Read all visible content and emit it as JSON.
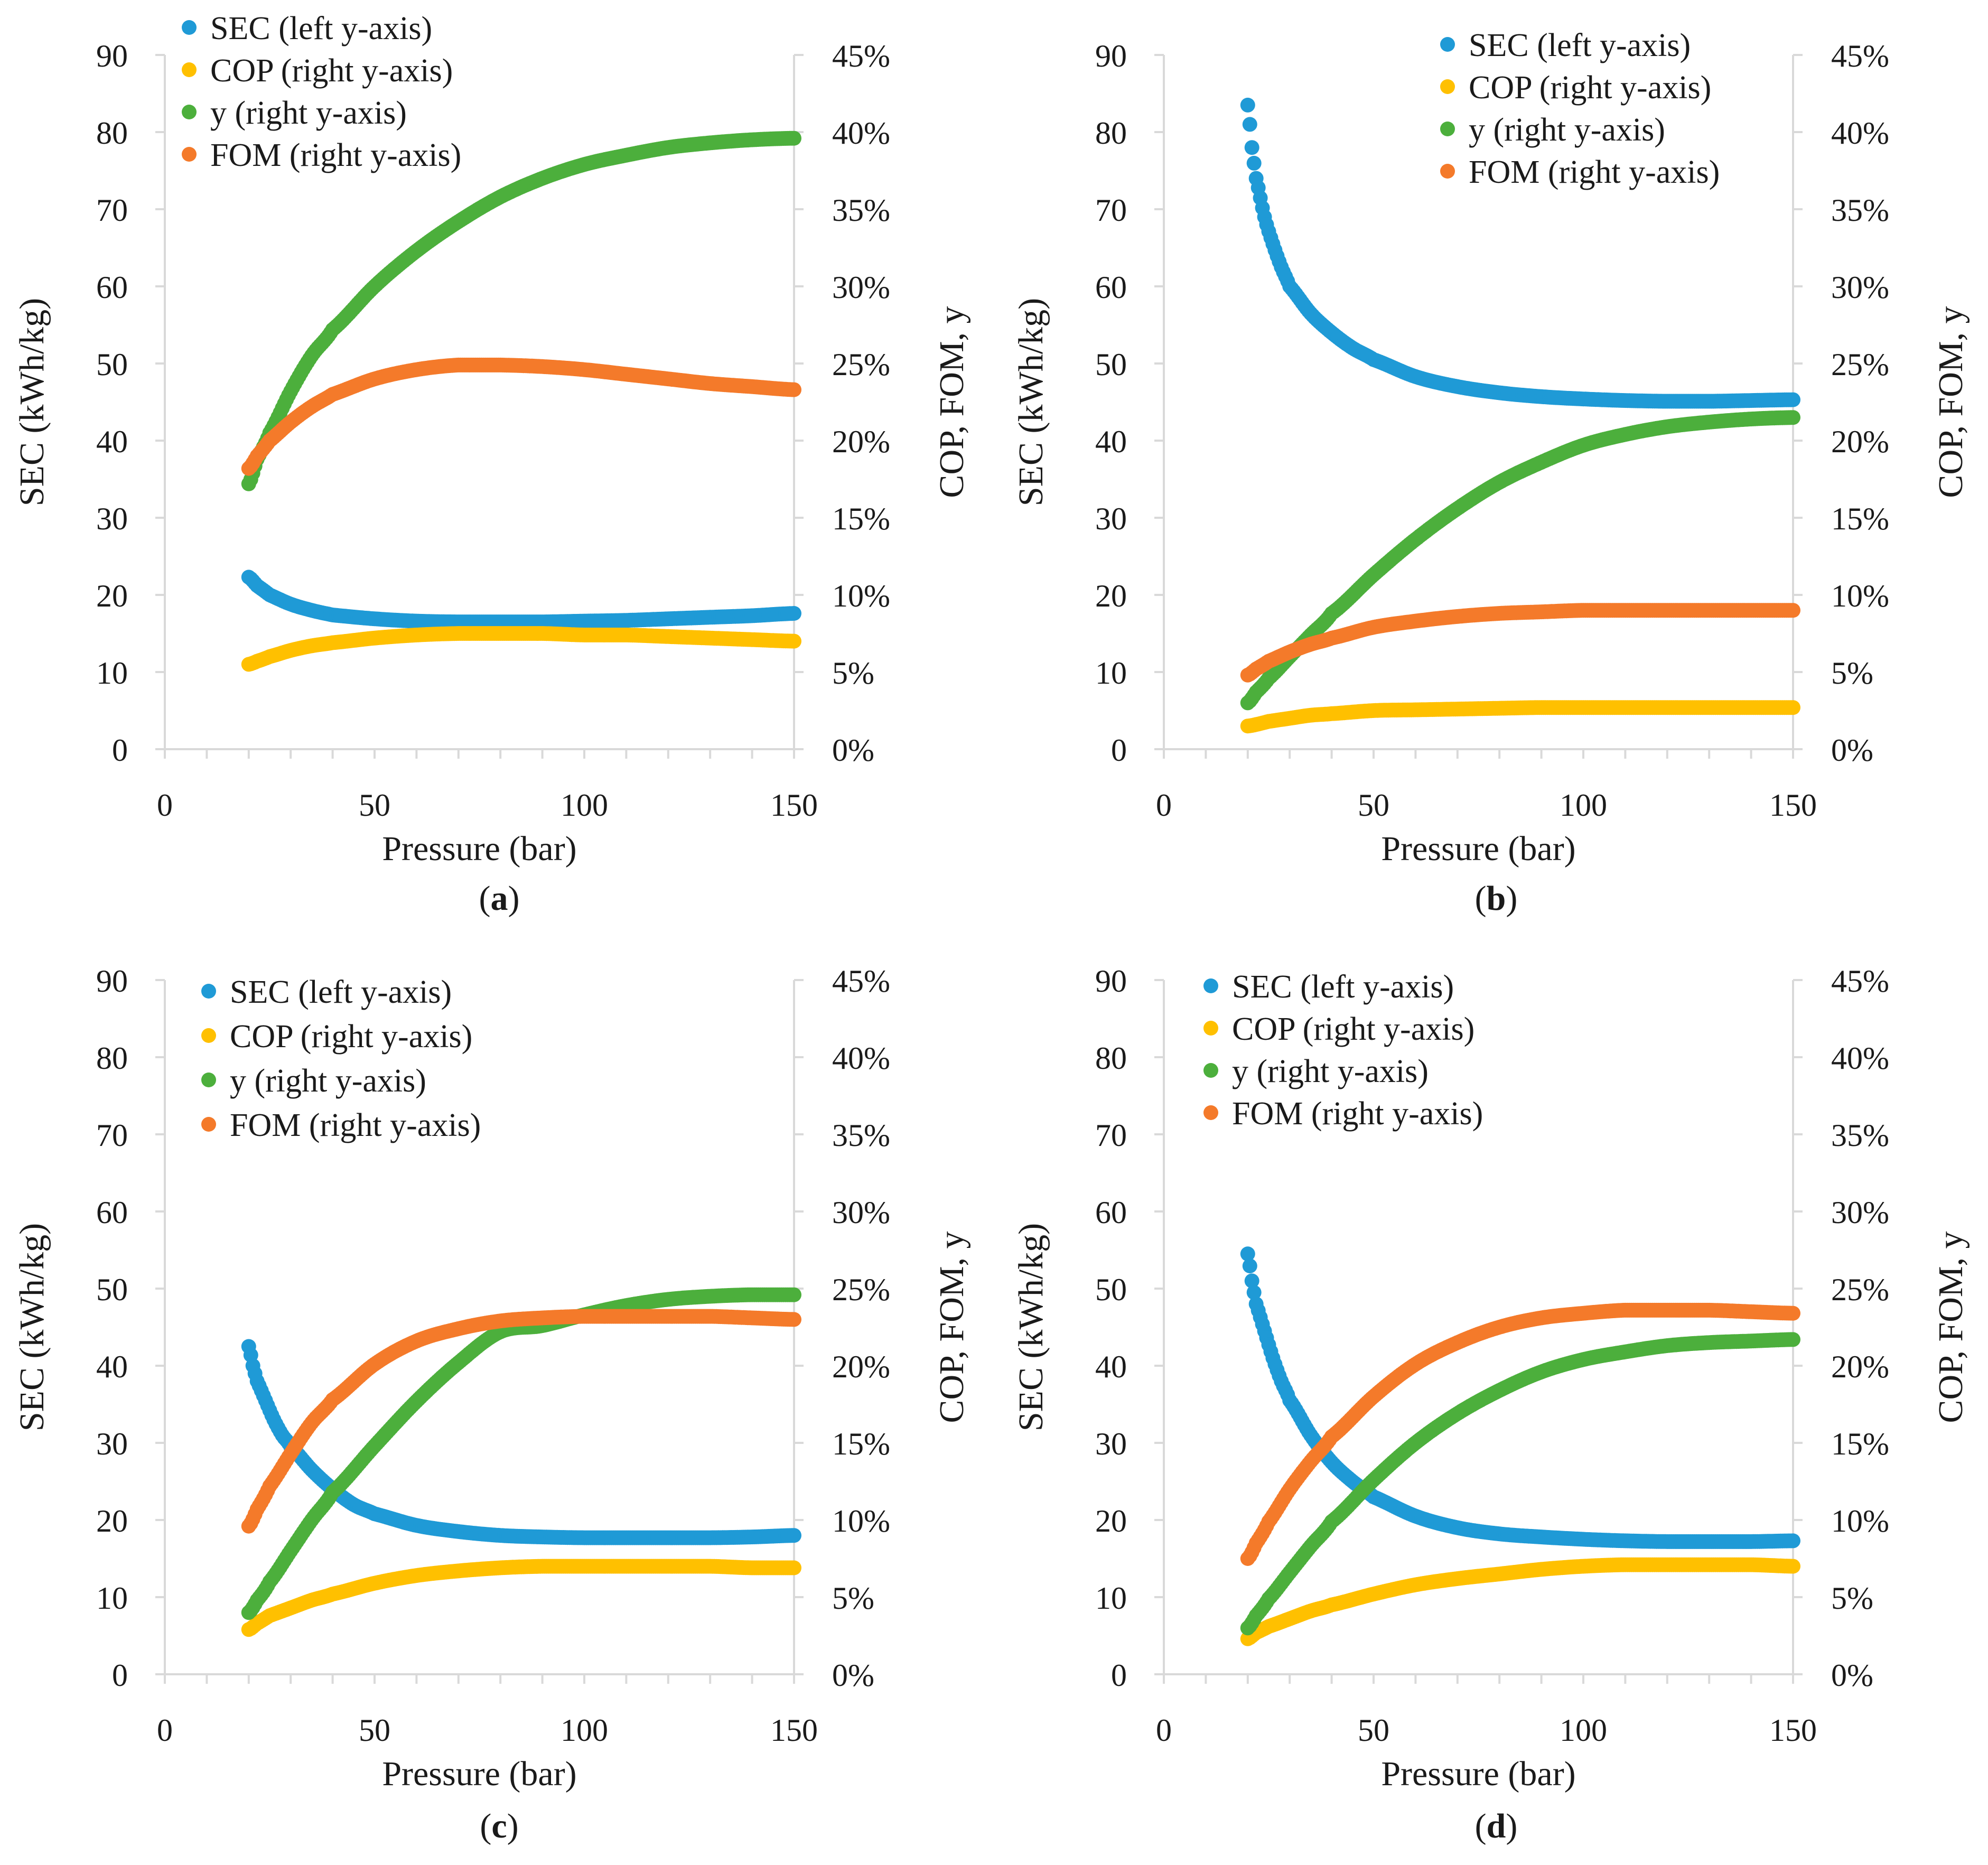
{
  "chart_data": [
    {
      "type": "scatter",
      "panel_label": "a",
      "xlabel": "Pressure (bar)",
      "ylabel_left": "SEC (kWh/kg)",
      "ylabel_right": "COP, FOM, y",
      "xlim": [
        0,
        150
      ],
      "xticks": [
        0,
        50,
        100,
        150
      ],
      "ylim_left": [
        0,
        90
      ],
      "yticks_left": [
        0,
        10,
        20,
        30,
        40,
        50,
        60,
        70,
        80,
        90
      ],
      "ylim_right": [
        0,
        0.45
      ],
      "yticks_right": [
        "0%",
        "5%",
        "10%",
        "15%",
        "20%",
        "25%",
        "30%",
        "35%",
        "40%",
        "45%"
      ],
      "legend_position": "top-left",
      "series": [
        {
          "name": "SEC (left y-axis)",
          "axis": "left",
          "color": "#1f9ad6",
          "x": [
            20,
            22,
            25,
            30,
            35,
            40,
            50,
            60,
            70,
            80,
            90,
            100,
            110,
            120,
            130,
            140,
            150
          ],
          "y": [
            22.3,
            21.2,
            20.0,
            18.8,
            18.0,
            17.4,
            16.9,
            16.6,
            16.5,
            16.5,
            16.5,
            16.6,
            16.7,
            16.9,
            17.1,
            17.3,
            17.6
          ]
        },
        {
          "name": "COP (right y-axis)",
          "axis": "right",
          "color": "#ffc000",
          "x": [
            20,
            22,
            25,
            30,
            35,
            40,
            50,
            60,
            70,
            80,
            90,
            100,
            110,
            120,
            130,
            140,
            150
          ],
          "y": [
            0.055,
            0.057,
            0.06,
            0.064,
            0.067,
            0.069,
            0.072,
            0.074,
            0.075,
            0.075,
            0.075,
            0.074,
            0.074,
            0.073,
            0.072,
            0.071,
            0.07
          ]
        },
        {
          "name": "y (right y-axis)",
          "axis": "right",
          "color": "#4caf3c",
          "x": [
            20,
            22,
            25,
            30,
            35,
            40,
            50,
            60,
            70,
            80,
            90,
            100,
            110,
            120,
            130,
            140,
            150
          ],
          "y": [
            0.172,
            0.188,
            0.205,
            0.232,
            0.255,
            0.272,
            0.3,
            0.323,
            0.342,
            0.358,
            0.37,
            0.379,
            0.385,
            0.39,
            0.393,
            0.395,
            0.396
          ]
        },
        {
          "name": "FOM (right y-axis)",
          "axis": "right",
          "color": "#f47a2a",
          "x": [
            20,
            22,
            25,
            30,
            35,
            40,
            50,
            60,
            70,
            80,
            90,
            100,
            110,
            120,
            130,
            140,
            150
          ],
          "y": [
            0.182,
            0.19,
            0.2,
            0.212,
            0.222,
            0.23,
            0.24,
            0.246,
            0.249,
            0.249,
            0.248,
            0.246,
            0.243,
            0.24,
            0.237,
            0.235,
            0.233
          ]
        }
      ]
    },
    {
      "type": "scatter",
      "panel_label": "b",
      "xlabel": "Pressure (bar)",
      "ylabel_left": "SEC (kWh/kg)",
      "ylabel_right": "COP, FOM, y",
      "xlim": [
        0,
        150
      ],
      "xticks": [
        0,
        50,
        100,
        150
      ],
      "ylim_left": [
        0,
        90
      ],
      "yticks_left": [
        0,
        10,
        20,
        30,
        40,
        50,
        60,
        70,
        80,
        90
      ],
      "ylim_right": [
        0,
        0.45
      ],
      "yticks_right": [
        "0%",
        "5%",
        "10%",
        "15%",
        "20%",
        "25%",
        "30%",
        "35%",
        "40%",
        "45%"
      ],
      "legend_position": "top-right",
      "series": [
        {
          "name": "SEC (left y-axis)",
          "axis": "left",
          "color": "#1f9ad6",
          "x": [
            20,
            21,
            22,
            24,
            26,
            28,
            30,
            35,
            40,
            45,
            50,
            60,
            70,
            80,
            90,
            100,
            110,
            120,
            130,
            140,
            150
          ],
          "y": [
            83.5,
            78.0,
            74.0,
            69.0,
            65.5,
            62.5,
            60.0,
            56.5,
            54.0,
            52.0,
            50.5,
            48.3,
            47.0,
            46.2,
            45.7,
            45.4,
            45.2,
            45.1,
            45.1,
            45.2,
            45.3
          ]
        },
        {
          "name": "COP (right y-axis)",
          "axis": "right",
          "color": "#ffc000",
          "x": [
            20,
            22,
            25,
            30,
            35,
            40,
            50,
            60,
            70,
            80,
            90,
            100,
            110,
            120,
            130,
            140,
            150
          ],
          "y": [
            0.015,
            0.016,
            0.018,
            0.02,
            0.022,
            0.023,
            0.025,
            0.0255,
            0.026,
            0.0265,
            0.027,
            0.027,
            0.027,
            0.027,
            0.027,
            0.027,
            0.027
          ]
        },
        {
          "name": "y (right y-axis)",
          "axis": "right",
          "color": "#4caf3c",
          "x": [
            20,
            22,
            25,
            30,
            35,
            40,
            50,
            60,
            70,
            80,
            90,
            100,
            110,
            120,
            130,
            140,
            150
          ],
          "y": [
            0.03,
            0.037,
            0.046,
            0.06,
            0.074,
            0.088,
            0.113,
            0.136,
            0.156,
            0.173,
            0.186,
            0.197,
            0.204,
            0.209,
            0.212,
            0.214,
            0.215
          ]
        },
        {
          "name": "FOM (right y-axis)",
          "axis": "right",
          "color": "#f47a2a",
          "x": [
            20,
            22,
            25,
            30,
            35,
            40,
            50,
            60,
            70,
            80,
            90,
            100,
            110,
            120,
            130,
            140,
            150
          ],
          "y": [
            0.048,
            0.052,
            0.057,
            0.063,
            0.068,
            0.072,
            0.079,
            0.083,
            0.086,
            0.088,
            0.089,
            0.09,
            0.09,
            0.09,
            0.09,
            0.09,
            0.09
          ]
        }
      ]
    },
    {
      "type": "scatter",
      "panel_label": "c",
      "xlabel": "Pressure (bar)",
      "ylabel_left": "SEC (kWh/kg)",
      "ylabel_right": "COP, FOM, y",
      "xlim": [
        0,
        150
      ],
      "xticks": [
        0,
        50,
        100,
        150
      ],
      "ylim_left": [
        0,
        90
      ],
      "yticks_left": [
        0,
        10,
        20,
        30,
        40,
        50,
        60,
        70,
        80,
        90
      ],
      "ylim_right": [
        0,
        0.45
      ],
      "yticks_right": [
        "0%",
        "5%",
        "10%",
        "15%",
        "20%",
        "25%",
        "30%",
        "35%",
        "40%",
        "45%"
      ],
      "legend_position": "top-left",
      "series": [
        {
          "name": "SEC (left y-axis)",
          "axis": "left",
          "color": "#1f9ad6",
          "x": [
            20,
            21,
            22,
            24,
            26,
            28,
            30,
            35,
            40,
            45,
            50,
            60,
            70,
            80,
            90,
            100,
            110,
            120,
            130,
            140,
            150
          ],
          "y": [
            42.5,
            40.0,
            38.0,
            35.5,
            33.0,
            31.0,
            29.5,
            26.5,
            24.0,
            22.0,
            20.8,
            19.3,
            18.5,
            18.0,
            17.8,
            17.7,
            17.7,
            17.7,
            17.7,
            17.8,
            18.0
          ]
        },
        {
          "name": "COP (right y-axis)",
          "axis": "right",
          "color": "#ffc000",
          "x": [
            20,
            22,
            25,
            30,
            35,
            40,
            50,
            60,
            70,
            80,
            90,
            100,
            110,
            120,
            130,
            140,
            150
          ],
          "y": [
            0.029,
            0.033,
            0.038,
            0.043,
            0.048,
            0.052,
            0.059,
            0.064,
            0.067,
            0.069,
            0.07,
            0.07,
            0.07,
            0.07,
            0.07,
            0.069,
            0.069
          ]
        },
        {
          "name": "y (right y-axis)",
          "axis": "right",
          "color": "#4caf3c",
          "x": [
            20,
            22,
            25,
            30,
            35,
            40,
            50,
            60,
            70,
            80,
            90,
            100,
            110,
            120,
            130,
            140,
            150
          ],
          "y": [
            0.04,
            0.048,
            0.06,
            0.08,
            0.1,
            0.118,
            0.148,
            0.177,
            0.202,
            0.222,
            0.226,
            0.233,
            0.239,
            0.243,
            0.245,
            0.246,
            0.246
          ]
        },
        {
          "name": "FOM (right y-axis)",
          "axis": "right",
          "color": "#f47a2a",
          "x": [
            20,
            22,
            25,
            30,
            35,
            40,
            50,
            60,
            70,
            80,
            90,
            100,
            110,
            120,
            130,
            140,
            150
          ],
          "y": [
            0.096,
            0.107,
            0.122,
            0.143,
            0.163,
            0.178,
            0.201,
            0.216,
            0.224,
            0.229,
            0.231,
            0.232,
            0.232,
            0.232,
            0.232,
            0.231,
            0.23
          ]
        }
      ]
    },
    {
      "type": "scatter",
      "panel_label": "d",
      "xlabel": "Pressure (bar)",
      "ylabel_left": "SEC (kWh/kg)",
      "ylabel_right": "COP, FOM, y",
      "xlim": [
        0,
        150
      ],
      "xticks": [
        0,
        50,
        100,
        150
      ],
      "ylim_left": [
        0,
        90
      ],
      "yticks_left": [
        0,
        10,
        20,
        30,
        40,
        50,
        60,
        70,
        80,
        90
      ],
      "ylim_right": [
        0,
        0.45
      ],
      "yticks_right": [
        "0%",
        "5%",
        "10%",
        "15%",
        "20%",
        "25%",
        "30%",
        "35%",
        "40%",
        "45%"
      ],
      "legend_position": "top-left",
      "series": [
        {
          "name": "SEC (left y-axis)",
          "axis": "left",
          "color": "#1f9ad6",
          "x": [
            20,
            21,
            22,
            24,
            26,
            28,
            30,
            35,
            40,
            45,
            50,
            60,
            70,
            80,
            90,
            100,
            110,
            120,
            130,
            140,
            150
          ],
          "y": [
            54.5,
            51.0,
            48.0,
            44.5,
            41.0,
            38.0,
            35.5,
            31.0,
            27.5,
            25.0,
            23.0,
            20.5,
            19.0,
            18.2,
            17.8,
            17.5,
            17.3,
            17.2,
            17.2,
            17.2,
            17.3
          ]
        },
        {
          "name": "COP (right y-axis)",
          "axis": "right",
          "color": "#ffc000",
          "x": [
            20,
            22,
            25,
            30,
            35,
            40,
            50,
            60,
            70,
            80,
            90,
            100,
            110,
            120,
            130,
            140,
            150
          ],
          "y": [
            0.023,
            0.027,
            0.031,
            0.036,
            0.041,
            0.045,
            0.052,
            0.058,
            0.062,
            0.065,
            0.068,
            0.07,
            0.071,
            0.071,
            0.071,
            0.071,
            0.07
          ]
        },
        {
          "name": "y (right y-axis)",
          "axis": "right",
          "color": "#4caf3c",
          "x": [
            20,
            22,
            25,
            30,
            35,
            40,
            50,
            60,
            70,
            80,
            90,
            100,
            110,
            120,
            130,
            140,
            150
          ],
          "y": [
            0.03,
            0.038,
            0.049,
            0.066,
            0.083,
            0.099,
            0.126,
            0.15,
            0.169,
            0.184,
            0.196,
            0.204,
            0.209,
            0.213,
            0.215,
            0.216,
            0.217
          ]
        },
        {
          "name": "FOM (right y-axis)",
          "axis": "right",
          "color": "#f47a2a",
          "x": [
            20,
            22,
            25,
            30,
            35,
            40,
            50,
            60,
            70,
            80,
            90,
            100,
            110,
            120,
            130,
            140,
            150
          ],
          "y": [
            0.075,
            0.085,
            0.099,
            0.12,
            0.138,
            0.154,
            0.18,
            0.201,
            0.215,
            0.225,
            0.231,
            0.234,
            0.236,
            0.236,
            0.236,
            0.235,
            0.234
          ]
        }
      ]
    }
  ]
}
